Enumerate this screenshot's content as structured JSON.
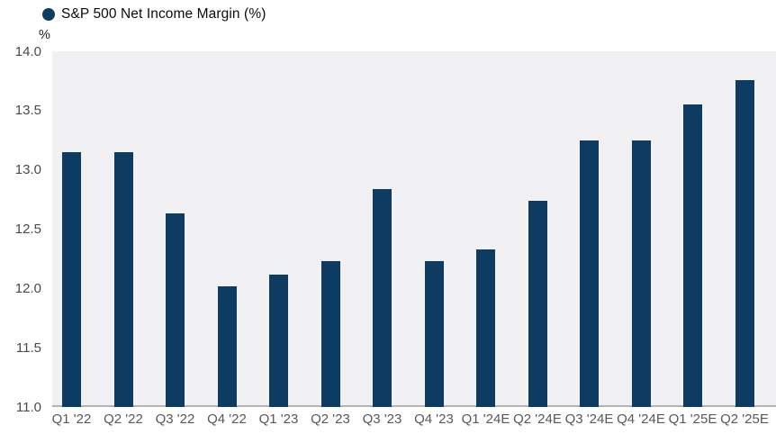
{
  "legend": {
    "label": "S&P 500 Net Income Margin (%)"
  },
  "chart_data": {
    "type": "bar",
    "title": "S&P 500 Net Income Margin (%)",
    "categories": [
      "Q1 '22",
      "Q2 '22",
      "Q3 '22",
      "Q4 '22",
      "Q1 '23",
      "Q2 '23",
      "Q3 '23",
      "Q4 '23",
      "Q1 '24E",
      "Q2 '24E",
      "Q3 '24E",
      "Q4 '24E",
      "Q1 '25E",
      "Q2 '25E"
    ],
    "values": [
      13.15,
      13.15,
      12.63,
      12.02,
      12.12,
      12.23,
      12.84,
      12.23,
      12.33,
      12.74,
      13.25,
      13.25,
      13.55,
      13.76
    ],
    "xlabel": "",
    "ylabel": "%",
    "ylim": [
      11.0,
      14.0
    ],
    "ytick_labels": [
      "14.0",
      "13.5",
      "13.0",
      "12.5",
      "12.0",
      "11.5",
      "11.0"
    ],
    "ytick_values": [
      14.0,
      13.5,
      13.0,
      12.5,
      12.0,
      11.5,
      11.0
    ],
    "grid": false,
    "legend_position": "top-left",
    "colors": {
      "bar": "#0e3b62",
      "plot_background": "#f1f1f4",
      "axis_line": "#b1b3b6",
      "ytick_text": "#48494b",
      "xtick_text": "#56585a",
      "legend_text": "#0b0b0c"
    }
  }
}
